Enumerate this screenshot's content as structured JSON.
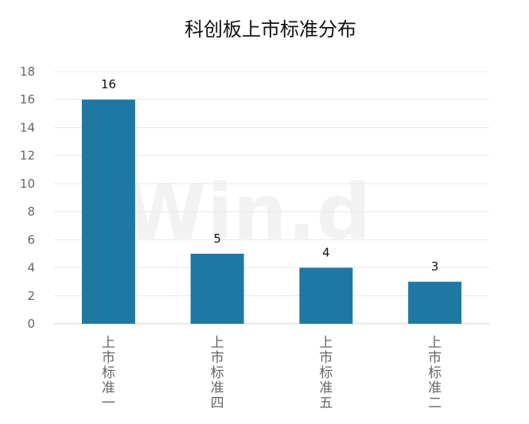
{
  "chart_data": {
    "type": "bar",
    "title": "科创板上市标准分布",
    "categories": [
      "上市标准一",
      "上市标准四",
      "上市标准五",
      "上市标准二"
    ],
    "values": [
      16,
      5,
      4,
      3
    ],
    "ylim": [
      0,
      18
    ],
    "yticks": [
      0,
      2,
      4,
      6,
      8,
      10,
      12,
      14,
      16,
      18
    ],
    "grid": true,
    "legend": "none",
    "bar_color": "#1f78a4",
    "watermark": "Win.d"
  }
}
